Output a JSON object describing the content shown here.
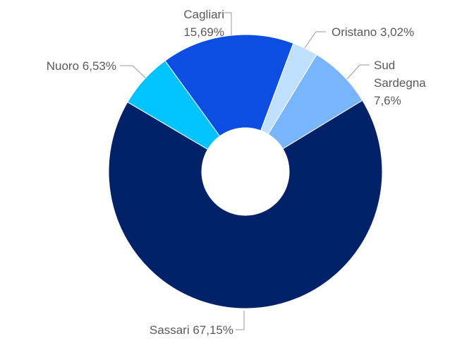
{
  "chart_data": {
    "type": "donut",
    "categories": [
      "Cagliari",
      "Oristano",
      "Sud Sardegna",
      "Sassari",
      "Nuoro"
    ],
    "values": [
      15.69,
      3.02,
      7.6,
      67.15,
      6.53
    ],
    "value_labels": [
      "15,69%",
      "3,02%",
      "7,6%",
      "67,15%",
      "6,53%"
    ],
    "colors": [
      "#0c4ee2",
      "#bfe1ff",
      "#78b5fb",
      "#012169",
      "#00c3ff"
    ]
  }
}
